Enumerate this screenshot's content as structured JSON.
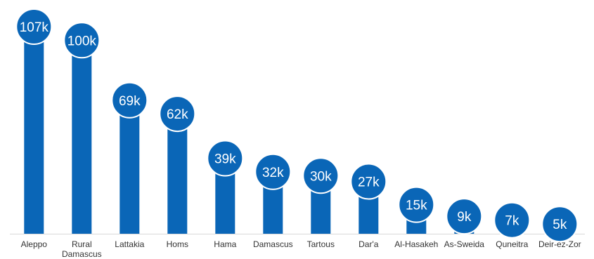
{
  "chart_data": {
    "type": "bar",
    "categories": [
      "Aleppo",
      "Rural Damascus",
      "Lattakia",
      "Homs",
      "Hama",
      "Damascus",
      "Tartous",
      "Dar'a",
      "Al-Hasakeh",
      "As-Sweida",
      "Quneitra",
      "Deir-ez-Zor"
    ],
    "category_lines": [
      [
        "Aleppo"
      ],
      [
        "Rural",
        "Damascus"
      ],
      [
        "Lattakia"
      ],
      [
        "Homs"
      ],
      [
        "Hama"
      ],
      [
        "Damascus"
      ],
      [
        "Tartous"
      ],
      [
        "Dar'a"
      ],
      [
        "Al-Hasakeh"
      ],
      [
        "As-Sweida"
      ],
      [
        "Quneitra"
      ],
      [
        "Deir-ez-Zor"
      ]
    ],
    "values": [
      107,
      100,
      69,
      62,
      39,
      32,
      30,
      27,
      15,
      9,
      7,
      5
    ],
    "labels": [
      "107k",
      "100k",
      "69k",
      "62k",
      "39k",
      "32k",
      "30k",
      "27k",
      "15k",
      "9k",
      "7k",
      "5k"
    ],
    "title": "",
    "xlabel": "",
    "ylabel": "",
    "ylim": [
      0,
      107
    ],
    "grid": false,
    "legend": "none",
    "colors": {
      "bar": "#0a66b7",
      "bubble": "#0a66b7",
      "bubble_outline": "#ffffff",
      "label": "#ffffff",
      "axis": "#d9d9d9",
      "category_text": "#333333"
    }
  }
}
